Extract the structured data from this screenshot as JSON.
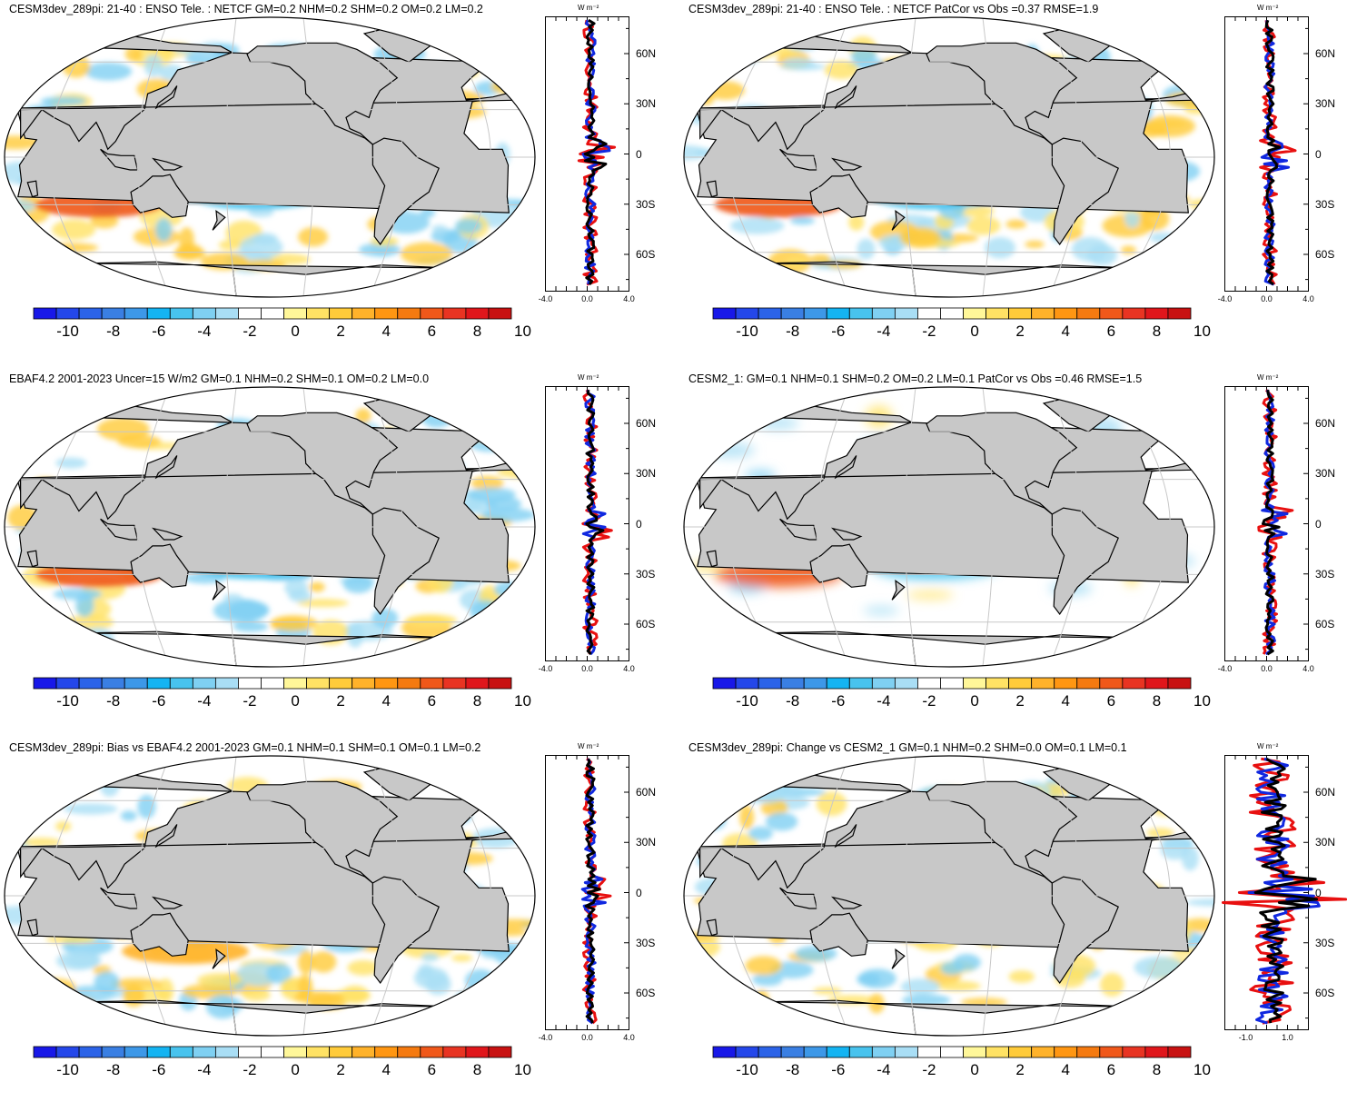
{
  "panels": [
    {
      "id": "p1",
      "title": "CESM3dev_289pi: 21-40 : ENSO Tele. : NETCF GM=0.2 NHM=0.2 SHM=0.2 OM=0.2 LM=0.2",
      "profile_unit": "W m⁻²",
      "profile_xticks": [
        "-4.0",
        "0.0",
        "4.0"
      ],
      "profile_xrange": [
        -4,
        4
      ],
      "map_style": "model"
    },
    {
      "id": "p2",
      "title": "CESM3dev_289pi: 21-40 : ENSO Tele. : NETCF PatCor vs Obs =0.37 RMSE=1.9",
      "profile_unit": "W m⁻²",
      "profile_xticks": [
        "-4.0",
        "0.0",
        "4.0"
      ],
      "profile_xrange": [
        -4,
        4
      ],
      "map_style": "model"
    },
    {
      "id": "p3",
      "title": "EBAF4.2 2001-2023 Uncer=15 W/m2 GM=0.1 NHM=0.2 SHM=0.1 OM=0.2 LM=0.0",
      "profile_unit": "W m⁻²",
      "profile_xticks": [
        "-4.0",
        "0.0",
        "4.0"
      ],
      "profile_xrange": [
        -4,
        4
      ],
      "map_style": "obs"
    },
    {
      "id": "p4",
      "title": "CESM2_1: GM=0.1 NHM=0.1 SHM=0.2 OM=0.2 LM=0.1 PatCor vs Obs =0.46 RMSE=1.5",
      "profile_unit": "W m⁻²",
      "profile_xticks": [
        "-4.0",
        "0.0",
        "4.0"
      ],
      "profile_xrange": [
        -4,
        4
      ],
      "map_style": "smooth"
    },
    {
      "id": "p5",
      "title": "CESM3dev_289pi: Bias vs EBAF4.2 2001-2023 GM=0.1 NHM=0.1 SHM=0.1 OM=0.1 LM=0.2",
      "profile_unit": "W m⁻²",
      "profile_xticks": [
        "-4.0",
        "0.0",
        "4.0"
      ],
      "profile_xrange": [
        -4,
        4
      ],
      "map_style": "bias"
    },
    {
      "id": "p6",
      "title": "CESM3dev_289pi: Change vs CESM2_1 GM=0.1 NHM=0.2 SHM=0.0 OM=0.1 LM=0.1",
      "profile_unit": "W m⁻²",
      "profile_xticks": [
        "-1.0",
        "1.0"
      ],
      "profile_xrange": [
        -2,
        2
      ],
      "map_style": "change"
    }
  ],
  "latitude_labels": [
    "60N",
    "30N",
    "0",
    "30S",
    "60S"
  ],
  "colorbar": {
    "labels": [
      "-10",
      "-8",
      "-6",
      "-4",
      "-2",
      "0",
      "2",
      "4",
      "6",
      "8",
      "10"
    ],
    "colors": [
      "#1818e8",
      "#2447ea",
      "#2b63e8",
      "#3a7fe3",
      "#3d98e8",
      "#14b4f2",
      "#48c3ee",
      "#7fd0f2",
      "#a9def5",
      "#ffffff",
      "#ffffff",
      "#fff799",
      "#ffe264",
      "#ffcb3a",
      "#ffb22a",
      "#ff9612",
      "#f57a10",
      "#f0581a",
      "#e83422",
      "#e0161b",
      "#c81212"
    ]
  },
  "colors": {
    "land": "#c8c8c8",
    "graticule": "#c8c8c8",
    "profile_model": "#e81010",
    "profile_obs": "#1028e0",
    "profile_mean": "#000000"
  }
}
